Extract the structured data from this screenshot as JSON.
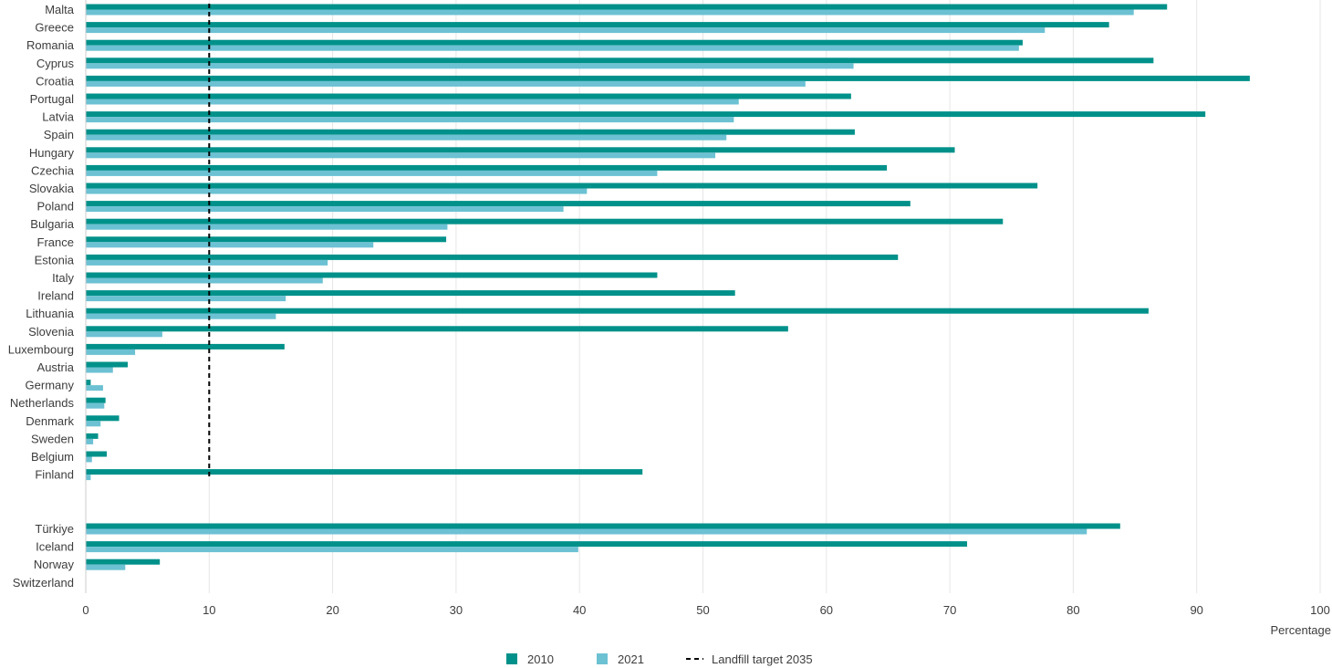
{
  "chart_data": {
    "type": "bar",
    "orientation": "horizontal",
    "title": "",
    "xlabel": "Percentage",
    "ylabel": "",
    "xlim": [
      0,
      100
    ],
    "xticks": [
      0,
      10,
      20,
      30,
      40,
      50,
      60,
      70,
      80,
      90,
      100
    ],
    "grid": "vertical",
    "legend_position": "bottom",
    "colors": {
      "2010": "#00918a",
      "2021": "#6cc1d3",
      "target": "#000000",
      "grid": "#e6e6e6",
      "axis": "#cccccc"
    },
    "categories": [
      "Malta",
      "Greece",
      "Romania",
      "Cyprus",
      "Croatia",
      "Portugal",
      "Latvia",
      "Spain",
      "Hungary",
      "Czechia",
      "Slovakia",
      "Poland",
      "Bulgaria",
      "France",
      "Estonia",
      "Italy",
      "Ireland",
      "Lithuania",
      "Slovenia",
      "Luxembourg",
      "Austria",
      "Germany",
      "Netherlands",
      "Denmark",
      "Sweden",
      "Belgium",
      "Finland",
      "Türkiye",
      "Iceland",
      "Norway",
      "Switzerland"
    ],
    "series": [
      {
        "name": "2010",
        "values": [
          87.6,
          82.9,
          75.9,
          86.5,
          94.3,
          62.0,
          90.7,
          62.3,
          70.4,
          64.9,
          77.1,
          66.8,
          74.3,
          29.2,
          65.8,
          46.3,
          52.6,
          86.1,
          56.9,
          16.1,
          3.4,
          0.4,
          1.6,
          2.7,
          1.0,
          1.7,
          45.1,
          83.8,
          71.4,
          6.0,
          0.0
        ]
      },
      {
        "name": "2021",
        "values": [
          84.9,
          77.7,
          75.6,
          62.2,
          58.3,
          52.9,
          52.5,
          51.9,
          51.0,
          46.3,
          40.6,
          38.7,
          29.3,
          23.3,
          19.6,
          19.2,
          16.2,
          15.4,
          6.2,
          4.0,
          2.2,
          1.4,
          1.5,
          1.2,
          0.6,
          0.5,
          0.4,
          81.1,
          39.9,
          3.2,
          0.0
        ]
      }
    ],
    "reference_line": {
      "name": "Landfill target 2035",
      "value": 10
    }
  }
}
